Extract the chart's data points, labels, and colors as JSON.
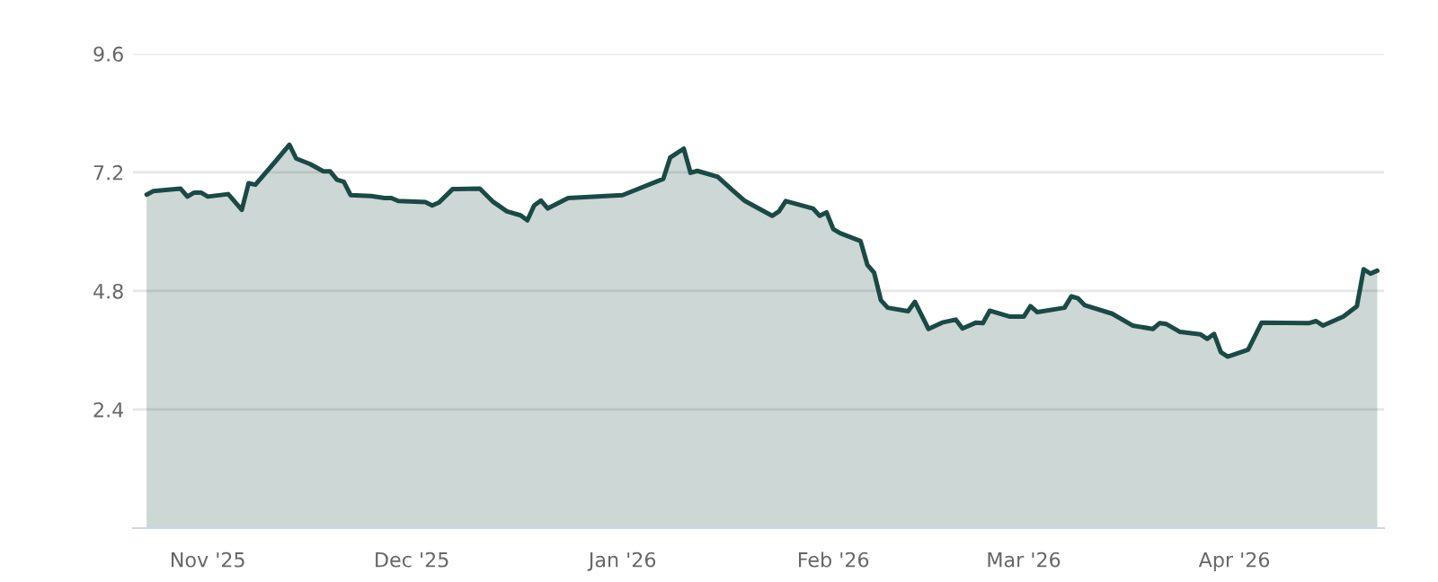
{
  "chart_data": {
    "type": "area",
    "x": [
      "2025-10-23",
      "2025-10-24",
      "2025-10-28",
      "2025-10-29",
      "2025-10-30",
      "2025-10-31",
      "2025-11-01",
      "2025-11-04",
      "2025-11-06",
      "2025-11-07",
      "2025-11-08",
      "2025-11-11",
      "2025-11-13",
      "2025-11-14",
      "2025-11-16",
      "2025-11-18",
      "2025-11-19",
      "2025-11-20",
      "2025-11-21",
      "2025-11-22",
      "2025-11-25",
      "2025-11-27",
      "2025-11-28",
      "2025-11-29",
      "2025-12-03",
      "2025-12-04",
      "2025-12-05",
      "2025-12-07",
      "2025-12-11",
      "2025-12-13",
      "2025-12-15",
      "2025-12-17",
      "2025-12-18",
      "2025-12-19",
      "2025-12-20",
      "2025-12-21",
      "2025-12-24",
      "2026-01-01",
      "2026-01-07",
      "2026-01-08",
      "2026-01-10",
      "2026-01-11",
      "2026-01-12",
      "2026-01-15",
      "2026-01-17",
      "2026-01-19",
      "2026-01-23",
      "2026-01-24",
      "2026-01-25",
      "2026-01-29",
      "2026-01-30",
      "2026-01-31",
      "2026-02-01",
      "2026-02-02",
      "2026-02-05",
      "2026-02-06",
      "2026-02-07",
      "2026-02-08",
      "2026-02-09",
      "2026-02-12",
      "2026-02-13",
      "2026-02-15",
      "2026-02-17",
      "2026-02-19",
      "2026-02-20",
      "2026-02-22",
      "2026-02-23",
      "2026-02-24",
      "2026-02-27",
      "2026-03-01",
      "2026-03-02",
      "2026-03-03",
      "2026-03-07",
      "2026-03-08",
      "2026-03-09",
      "2026-03-10",
      "2026-03-14",
      "2026-03-17",
      "2026-03-20",
      "2026-03-21",
      "2026-03-22",
      "2026-03-24",
      "2026-03-27",
      "2026-03-28",
      "2026-03-29",
      "2026-03-30",
      "2026-03-31",
      "2026-04-03",
      "2026-04-05",
      "2026-04-12",
      "2026-04-13",
      "2026-04-14",
      "2026-04-17",
      "2026-04-19",
      "2026-04-20",
      "2026-04-21",
      "2026-04-22"
    ],
    "series": [
      {
        "color": "#1a4a45",
        "values": [
          6.75,
          6.82,
          6.87,
          6.71,
          6.79,
          6.79,
          6.71,
          6.76,
          6.44,
          6.98,
          6.95,
          7.43,
          7.76,
          7.48,
          7.37,
          7.22,
          7.22,
          7.05,
          7.01,
          6.74,
          6.72,
          6.68,
          6.68,
          6.62,
          6.6,
          6.53,
          6.59,
          6.86,
          6.87,
          6.6,
          6.41,
          6.33,
          6.23,
          6.53,
          6.63,
          6.47,
          6.68,
          6.74,
          7.07,
          7.5,
          7.68,
          7.19,
          7.23,
          7.11,
          6.86,
          6.62,
          6.32,
          6.41,
          6.62,
          6.47,
          6.32,
          6.39,
          6.05,
          5.97,
          5.81,
          5.33,
          5.17,
          4.61,
          4.46,
          4.39,
          4.58,
          4.03,
          4.16,
          4.22,
          4.04,
          4.16,
          4.15,
          4.4,
          4.28,
          4.28,
          4.49,
          4.37,
          4.46,
          4.69,
          4.65,
          4.51,
          4.34,
          4.1,
          4.03,
          4.15,
          4.13,
          3.97,
          3.92,
          3.83,
          3.93,
          3.56,
          3.47,
          3.61,
          4.16,
          4.15,
          4.19,
          4.1,
          4.28,
          4.49,
          5.24,
          5.15,
          5.21
        ]
      }
    ],
    "xlim": [
      "2025-10-21",
      "2026-04-23"
    ],
    "xticks": [
      {
        "value": "2025-11-01",
        "label": "Nov '25"
      },
      {
        "value": "2025-12-01",
        "label": "Dec '25"
      },
      {
        "value": "2026-01-01",
        "label": "Jan '26"
      },
      {
        "value": "2026-02-01",
        "label": "Feb '26"
      },
      {
        "value": "2026-03-01",
        "label": "Mar '26"
      },
      {
        "value": "2026-04-01",
        "label": "Apr '26"
      }
    ],
    "ylim": [
      0,
      9.6
    ],
    "yticks": [
      2.4,
      4.8,
      7.2,
      9.6
    ],
    "grid": "y",
    "legend": false,
    "marker": "none",
    "line_style": "solid"
  }
}
